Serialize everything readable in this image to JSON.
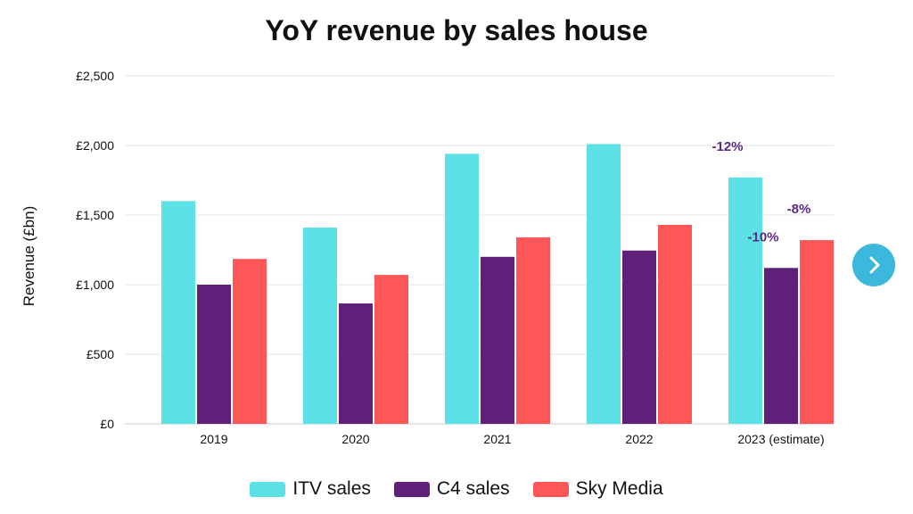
{
  "chart_data": {
    "type": "bar",
    "title": "YoY revenue by sales house",
    "xlabel": "",
    "ylabel": "Revenue (£bn)",
    "ylim": [
      0,
      2500
    ],
    "y_ticks": [
      0,
      500,
      1000,
      1500,
      2000,
      2500
    ],
    "y_tick_labels": [
      "£0",
      "£500",
      "£1,000",
      "£1,500",
      "£2,000",
      "£2,500"
    ],
    "categories": [
      "2019",
      "2020",
      "2021",
      "2022",
      "2023 (estimate)"
    ],
    "series": [
      {
        "name": "ITV sales",
        "color": "#5ce1e6",
        "values": [
          1600,
          1410,
          1940,
          2010,
          1770
        ]
      },
      {
        "name": "C4 sales",
        "color": "#5e2079",
        "values": [
          1000,
          865,
          1200,
          1245,
          1120
        ]
      },
      {
        "name": "Sky Media",
        "color": "#ff5757",
        "values": [
          1185,
          1070,
          1340,
          1430,
          1320
        ]
      }
    ],
    "annotations": [
      {
        "text": "-12%",
        "series": "ITV sales",
        "category": "2023 (estimate)"
      },
      {
        "text": "-10%",
        "series": "C4 sales",
        "category": "2023 (estimate)"
      },
      {
        "text": "-8%",
        "series": "Sky Media",
        "category": "2023 (estimate)"
      }
    ],
    "grid": true,
    "legend": "bottom-center"
  },
  "navigation": {
    "next_icon": "chevron-right-icon",
    "accent_color": "#3bb8dc"
  }
}
